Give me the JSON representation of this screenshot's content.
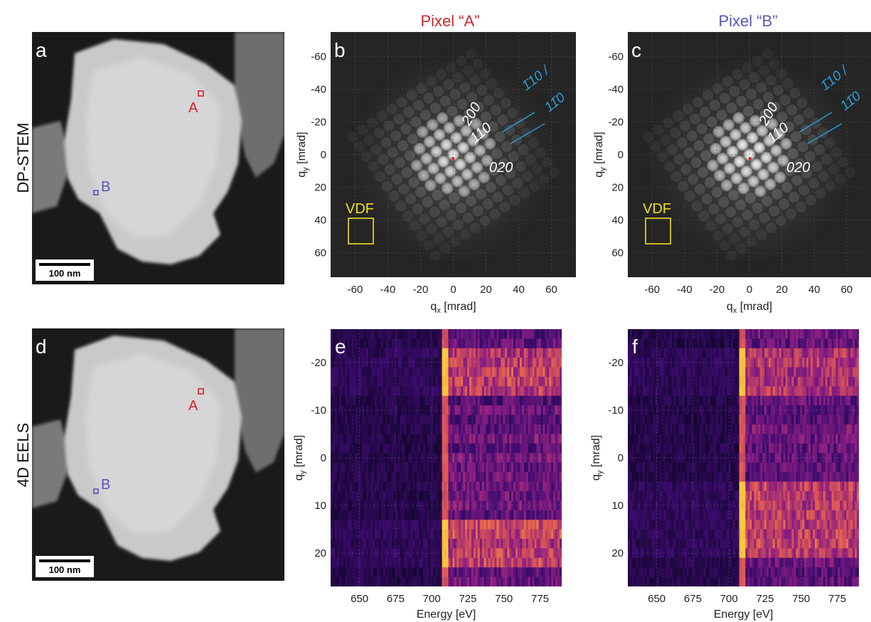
{
  "column_headers": {
    "pixel_a": "Pixel “A”",
    "pixel_b": "Pixel “B”"
  },
  "row_labels": {
    "top": "DP-STEM",
    "bottom": "4D EELS"
  },
  "panels": {
    "a": {
      "label": "a",
      "marker_a": "A",
      "marker_b": "B",
      "scalebar": "100 nm"
    },
    "b": {
      "label": "b"
    },
    "c": {
      "label": "c"
    },
    "d": {
      "label": "d",
      "marker_a": "A",
      "marker_b": "B",
      "scalebar": "100 nm"
    },
    "e": {
      "label": "e"
    },
    "f": {
      "label": "f"
    }
  },
  "diffraction": {
    "spot_labels": {
      "s200": "200",
      "s110": "110",
      "s020": "020",
      "zone_top": "1̄10 /",
      "zone_bottom": "11̄0"
    },
    "vdf_label": "VDF",
    "x_ticks": [
      -60,
      -40,
      -20,
      0,
      20,
      40,
      60
    ],
    "y_ticks": [
      -60,
      -40,
      -20,
      0,
      20,
      40,
      60
    ],
    "x_axis_label_main": "q",
    "x_axis_label_sub": "x",
    "x_axis_label_unit": " [mrad]",
    "y_axis_label_main": "q",
    "y_axis_label_sub": "y",
    "y_axis_label_unit": " [mrad]",
    "xlim": [
      -75,
      75
    ],
    "ylim": [
      -75,
      75
    ]
  },
  "chart_data": [
    {
      "type": "heatmap",
      "panel": "e",
      "xlabel": "Energy [eV]",
      "ylabel": "q_y [mrad]",
      "x_ticks": [
        650,
        675,
        700,
        725,
        750,
        775
      ],
      "y_ticks": [
        -20,
        -10,
        0,
        10,
        20
      ],
      "xlim": [
        630,
        790
      ],
      "ylim": [
        -27,
        27
      ],
      "edge_energy": 709,
      "bright_bands": [
        [
          -23,
          -13
        ],
        [
          13,
          23
        ]
      ]
    },
    {
      "type": "heatmap",
      "panel": "f",
      "xlabel": "Energy [eV]",
      "ylabel": "q_y [mrad]",
      "x_ticks": [
        650,
        675,
        700,
        725,
        750,
        775
      ],
      "y_ticks": [
        -20,
        -10,
        0,
        10,
        20
      ],
      "xlim": [
        630,
        790
      ],
      "ylim": [
        -27,
        27
      ],
      "edge_energy": 709,
      "bright_bands": [
        [
          -23,
          -13
        ],
        [
          6,
          20
        ]
      ]
    }
  ],
  "colors": {
    "marker_a": "#d4202a",
    "marker_b": "#5a55b8",
    "vdf": "#f0e020",
    "zone_axis": "#2a9fd6",
    "spot_label": "#ffffff",
    "axis_text": "#222222"
  }
}
